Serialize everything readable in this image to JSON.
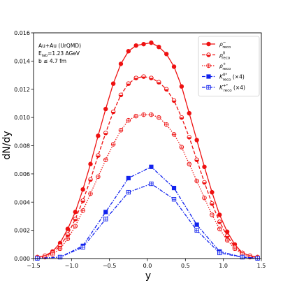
{
  "chart_data": {
    "type": "line",
    "xlabel": "y",
    "ylabel": "dN/dy",
    "xlim": [
      -1.5,
      1.5
    ],
    "ylim": [
      0,
      0.016
    ],
    "x_ticks": [
      "−1.5",
      "−1.0",
      "−0.5",
      "0.0",
      "0.5",
      "1.0",
      "1.5"
    ],
    "y_ticks": [
      "0.000",
      "0.002",
      "0.004",
      "0.006",
      "0.008",
      "0.010",
      "0.012",
      "0.014",
      "0.016"
    ],
    "grid": false,
    "legend_position": "top-right",
    "annotations": [
      "Au+Au (UrQMD)",
      "E",
      "lab",
      "=1.23 AGeV",
      "b ≤ 4.7 fm"
    ],
    "series": [
      {
        "name": "ρ",
        "name_sup": "−",
        "name_sub": "reco",
        "name_suffix": "",
        "color": "#ee1111",
        "dash": "solid",
        "marker": "filled-circle",
        "x": [
          -1.45,
          -1.35,
          -1.25,
          -1.15,
          -1.05,
          -0.95,
          -0.85,
          -0.75,
          -0.65,
          -0.55,
          -0.45,
          -0.35,
          -0.25,
          -0.15,
          -0.05,
          0.05,
          0.15,
          0.25,
          0.35,
          0.45,
          0.55,
          0.65,
          0.75,
          0.85,
          0.95,
          1.05,
          1.15,
          1.25,
          1.35,
          1.45
        ],
        "y": [
          0.0001,
          0.0002,
          0.0005,
          0.0011,
          0.0021,
          0.0033,
          0.0049,
          0.0067,
          0.0087,
          0.0106,
          0.0124,
          0.0138,
          0.0147,
          0.0151,
          0.0152,
          0.0153,
          0.015,
          0.0145,
          0.0136,
          0.0122,
          0.0103,
          0.0084,
          0.0065,
          0.0047,
          0.0031,
          0.0019,
          0.001,
          0.0004,
          0.0002,
          0.0001
        ]
      },
      {
        "name": "ρ",
        "name_sup": "0",
        "name_sub": "reco",
        "name_suffix": "",
        "color": "#ee1111",
        "dash": "dashed",
        "marker": "half-circle",
        "x": [
          -1.45,
          -1.35,
          -1.25,
          -1.15,
          -1.05,
          -0.95,
          -0.85,
          -0.75,
          -0.65,
          -0.55,
          -0.45,
          -0.35,
          -0.25,
          -0.15,
          -0.05,
          0.05,
          0.15,
          0.25,
          0.35,
          0.45,
          0.55,
          0.65,
          0.75,
          0.85,
          0.95,
          1.05,
          1.15,
          1.25,
          1.35,
          1.45
        ],
        "y": [
          0.0001,
          0.0002,
          0.0004,
          0.0009,
          0.0017,
          0.0028,
          0.0041,
          0.0056,
          0.0073,
          0.0089,
          0.0104,
          0.0116,
          0.0124,
          0.0128,
          0.0129,
          0.0128,
          0.0125,
          0.012,
          0.0112,
          0.01,
          0.0086,
          0.007,
          0.0054,
          0.0039,
          0.0026,
          0.0016,
          0.0008,
          0.0004,
          0.0002,
          0.0001
        ]
      },
      {
        "name": "ρ",
        "name_sup": "+",
        "name_sub": "reco",
        "name_suffix": "",
        "color": "#ee1111",
        "dash": "dotted",
        "marker": "circle-plus",
        "x": [
          -1.45,
          -1.35,
          -1.25,
          -1.15,
          -1.05,
          -0.95,
          -0.85,
          -0.75,
          -0.65,
          -0.55,
          -0.45,
          -0.35,
          -0.25,
          -0.15,
          -0.05,
          0.05,
          0.15,
          0.25,
          0.35,
          0.45,
          0.55,
          0.65,
          0.75,
          0.85,
          0.95,
          1.05,
          1.15,
          1.25,
          1.35,
          1.45
        ],
        "y": [
          0.0001,
          0.0001,
          0.0003,
          0.0007,
          0.0014,
          0.0023,
          0.0034,
          0.0046,
          0.0058,
          0.007,
          0.0081,
          0.0091,
          0.0098,
          0.0101,
          0.0102,
          0.0102,
          0.01,
          0.0095,
          0.0088,
          0.0079,
          0.0067,
          0.0055,
          0.0043,
          0.0031,
          0.0021,
          0.0013,
          0.0007,
          0.0003,
          0.0001,
          0.0001
        ]
      },
      {
        "name": "K",
        "name_sup": "0*",
        "name_sub": "reco",
        "name_suffix": " (×4)",
        "color": "#1122ee",
        "dash": "dashdot",
        "marker": "filled-square",
        "x": [
          -1.45,
          -1.15,
          -0.85,
          -0.55,
          -0.25,
          0.05,
          0.35,
          0.65,
          0.95,
          1.25,
          1.45
        ],
        "y": [
          2e-05,
          0.0001,
          0.0009,
          0.0033,
          0.0057,
          0.0065,
          0.005,
          0.0024,
          0.0005,
          0.0001,
          2e-05
        ]
      },
      {
        "name": "K",
        "name_sup": "+*",
        "name_sub": "reco",
        "name_suffix": " (×4)",
        "color": "#1122ee",
        "dash": "dashdot",
        "marker": "square-plus",
        "x": [
          -1.45,
          -1.15,
          -0.85,
          -0.55,
          -0.25,
          0.05,
          0.35,
          0.65,
          0.95,
          1.25,
          1.45
        ],
        "y": [
          2e-05,
          0.0001,
          0.0008,
          0.0028,
          0.0047,
          0.0053,
          0.0042,
          0.002,
          0.0004,
          0.0001,
          2e-05
        ]
      }
    ]
  }
}
